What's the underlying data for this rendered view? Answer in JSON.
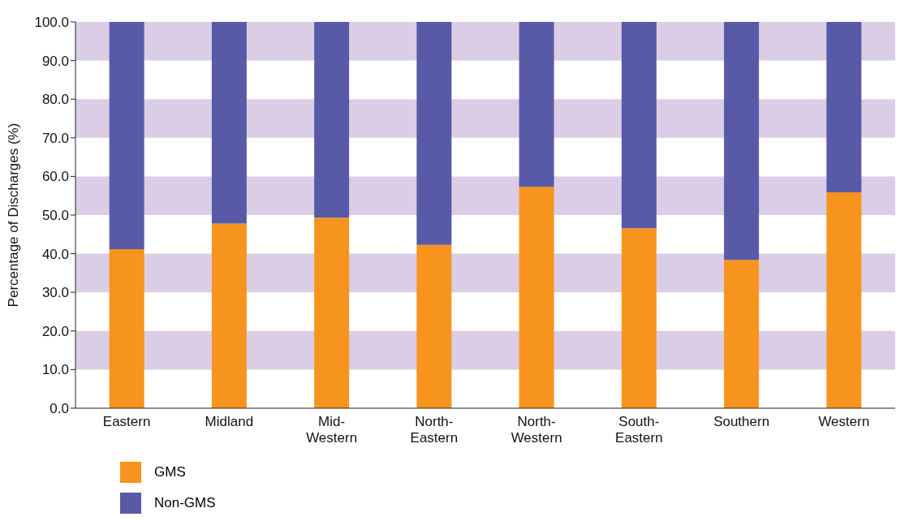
{
  "chart_data": {
    "type": "bar",
    "stacked": true,
    "ylabel": "Percentage of Discharges (%)",
    "categories": [
      "Eastern",
      "Midland",
      "Mid-Western",
      "North-Eastern",
      "North-Western",
      "South-Eastern",
      "Southern",
      "Western"
    ],
    "series": [
      {
        "name": "GMS",
        "color": "#f7941d",
        "values": [
          41.2,
          47.8,
          49.3,
          42.3,
          57.3,
          46.6,
          38.4,
          55.9
        ]
      },
      {
        "name": "Non-GMS",
        "color": "#585aa8",
        "values": [
          58.8,
          52.2,
          50.7,
          57.7,
          42.7,
          53.4,
          61.6,
          44.1
        ]
      }
    ],
    "ylim": [
      0,
      100
    ],
    "yticks": [
      {
        "value": 0,
        "label": "0.0"
      },
      {
        "value": 10,
        "label": "10.0"
      },
      {
        "value": 20,
        "label": "20.0"
      },
      {
        "value": 30,
        "label": "30.0"
      },
      {
        "value": 40,
        "label": "40.0"
      },
      {
        "value": 50,
        "label": "50.0"
      },
      {
        "value": 60,
        "label": "60.0"
      },
      {
        "value": 70,
        "label": "70.0"
      },
      {
        "value": 80,
        "label": "80.0"
      },
      {
        "value": 90,
        "label": "90.0"
      },
      {
        "value": 100,
        "label": "100.0"
      }
    ],
    "bands": [
      {
        "axis": "y",
        "from": 10,
        "to": 20,
        "color": "#dccde6"
      },
      {
        "axis": "y",
        "from": 30,
        "to": 40,
        "color": "#dccde6"
      },
      {
        "axis": "y",
        "from": 50,
        "to": 60,
        "color": "#dccde6"
      },
      {
        "axis": "y",
        "from": 70,
        "to": 80,
        "color": "#dccde6"
      },
      {
        "axis": "y",
        "from": 90,
        "to": 100,
        "color": "#dccde6"
      }
    ],
    "legend": "bottom left"
  }
}
